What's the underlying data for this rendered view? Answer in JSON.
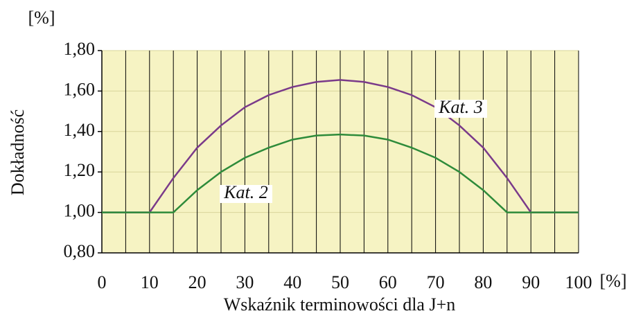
{
  "chart_data": {
    "type": "line",
    "y_unit": "[%]",
    "x_unit": "[%]",
    "x_label": "Wskaźnik terminowości dla J+n",
    "y_label": "Dokładność",
    "x": [
      0,
      5,
      10,
      15,
      20,
      25,
      30,
      35,
      40,
      45,
      50,
      55,
      60,
      65,
      70,
      75,
      80,
      85,
      90,
      95,
      100
    ],
    "series": [
      {
        "name": "Kat. 3",
        "color": "#7a3a8a",
        "values": [
          1,
          1,
          1,
          1.17,
          1.32,
          1.43,
          1.52,
          1.58,
          1.62,
          1.645,
          1.655,
          1.645,
          1.62,
          1.58,
          1.52,
          1.43,
          1.32,
          1.17,
          1,
          1,
          1
        ]
      },
      {
        "name": "Kat. 2",
        "color": "#2e8b3a",
        "values": [
          1,
          1,
          1,
          1,
          1.11,
          1.2,
          1.27,
          1.32,
          1.36,
          1.38,
          1.385,
          1.38,
          1.36,
          1.32,
          1.27,
          1.2,
          1.11,
          1,
          1,
          1,
          1
        ]
      }
    ],
    "xlim": [
      0,
      100
    ],
    "xticks": [
      0,
      10,
      20,
      30,
      40,
      50,
      60,
      70,
      80,
      90,
      100
    ],
    "ylim": [
      0.8,
      1.8
    ],
    "yticks": [
      {
        "value": 0.8,
        "label": "0,80"
      },
      {
        "value": 1.0,
        "label": "1,00"
      },
      {
        "value": 1.2,
        "label": "1,20"
      },
      {
        "value": 1.4,
        "label": "1,40"
      },
      {
        "value": 1.6,
        "label": "1,60"
      },
      {
        "value": 1.8,
        "label": "1,80"
      }
    ],
    "grid": true,
    "background": "#f6f3c3"
  }
}
